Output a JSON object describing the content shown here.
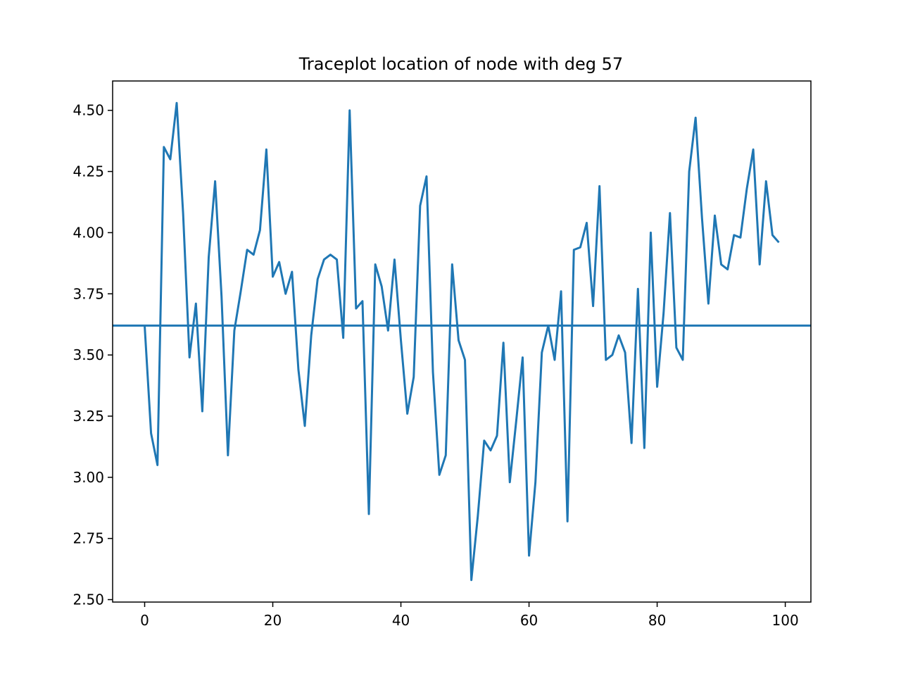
{
  "chart_data": {
    "type": "line",
    "title": "Traceplot location of node with deg 57",
    "xlabel": "",
    "ylabel": "",
    "xlim": [
      -5,
      104
    ],
    "ylim": [
      2.49,
      4.62
    ],
    "x_ticks": [
      0,
      20,
      40,
      60,
      80,
      100
    ],
    "x_tick_labels": [
      "0",
      "20",
      "40",
      "60",
      "80",
      "100"
    ],
    "y_ticks": [
      2.5,
      2.75,
      3.0,
      3.25,
      3.5,
      3.75,
      4.0,
      4.25,
      4.5
    ],
    "y_tick_labels": [
      "2.50",
      "2.75",
      "3.00",
      "3.25",
      "3.50",
      "3.75",
      "4.00",
      "4.25",
      "4.50"
    ],
    "grid": false,
    "series_color": "#1f77b4",
    "reference_line": {
      "y": 3.62,
      "color": "#1f77b4"
    },
    "series": [
      {
        "x": [
          0,
          1,
          2,
          3,
          4,
          5,
          6,
          7,
          8,
          9,
          10,
          11,
          12,
          13,
          14,
          15,
          16,
          17,
          18,
          19,
          20,
          21,
          22,
          23,
          24,
          25,
          26,
          27,
          28,
          29,
          30,
          31,
          32,
          33,
          34,
          35,
          36,
          37,
          38,
          39,
          40,
          41,
          42,
          43,
          44,
          45,
          46,
          47,
          48,
          49,
          50,
          51,
          52,
          53,
          54,
          55,
          56,
          57,
          58,
          59,
          60,
          61,
          62,
          63,
          64,
          65,
          66,
          67,
          68,
          69,
          70,
          71,
          72,
          73,
          74,
          75,
          76,
          77,
          78,
          79,
          80,
          81,
          82,
          83,
          84,
          85,
          86,
          87,
          88,
          89,
          90,
          91,
          92,
          93,
          94,
          95,
          96,
          97,
          98,
          99
        ],
        "values": [
          3.62,
          3.18,
          3.05,
          4.35,
          4.3,
          4.53,
          4.08,
          3.49,
          3.71,
          3.27,
          3.9,
          4.21,
          3.74,
          3.09,
          3.6,
          3.76,
          3.93,
          3.91,
          4.01,
          4.34,
          3.82,
          3.88,
          3.75,
          3.84,
          3.44,
          3.21,
          3.58,
          3.81,
          3.89,
          3.91,
          3.89,
          3.57,
          4.5,
          3.69,
          3.72,
          2.85,
          3.87,
          3.78,
          3.6,
          3.89,
          3.56,
          3.26,
          3.41,
          4.11,
          4.23,
          3.43,
          3.01,
          3.09,
          3.87,
          3.56,
          3.48,
          2.58,
          2.84,
          3.15,
          3.11,
          3.17,
          3.55,
          2.98,
          3.23,
          3.49,
          2.68,
          2.98,
          3.51,
          3.62,
          3.48,
          3.76,
          2.82,
          3.93,
          3.94,
          4.04,
          3.7,
          4.19,
          3.48,
          3.5,
          3.58,
          3.51,
          3.14,
          3.77,
          3.12,
          4.0,
          3.37,
          3.67,
          4.08,
          3.53,
          3.48,
          4.25,
          4.47,
          4.06,
          3.71,
          4.07,
          3.87,
          3.85,
          3.99,
          3.98,
          4.18,
          4.34,
          3.87,
          4.21,
          3.99,
          3.96
        ]
      }
    ]
  }
}
